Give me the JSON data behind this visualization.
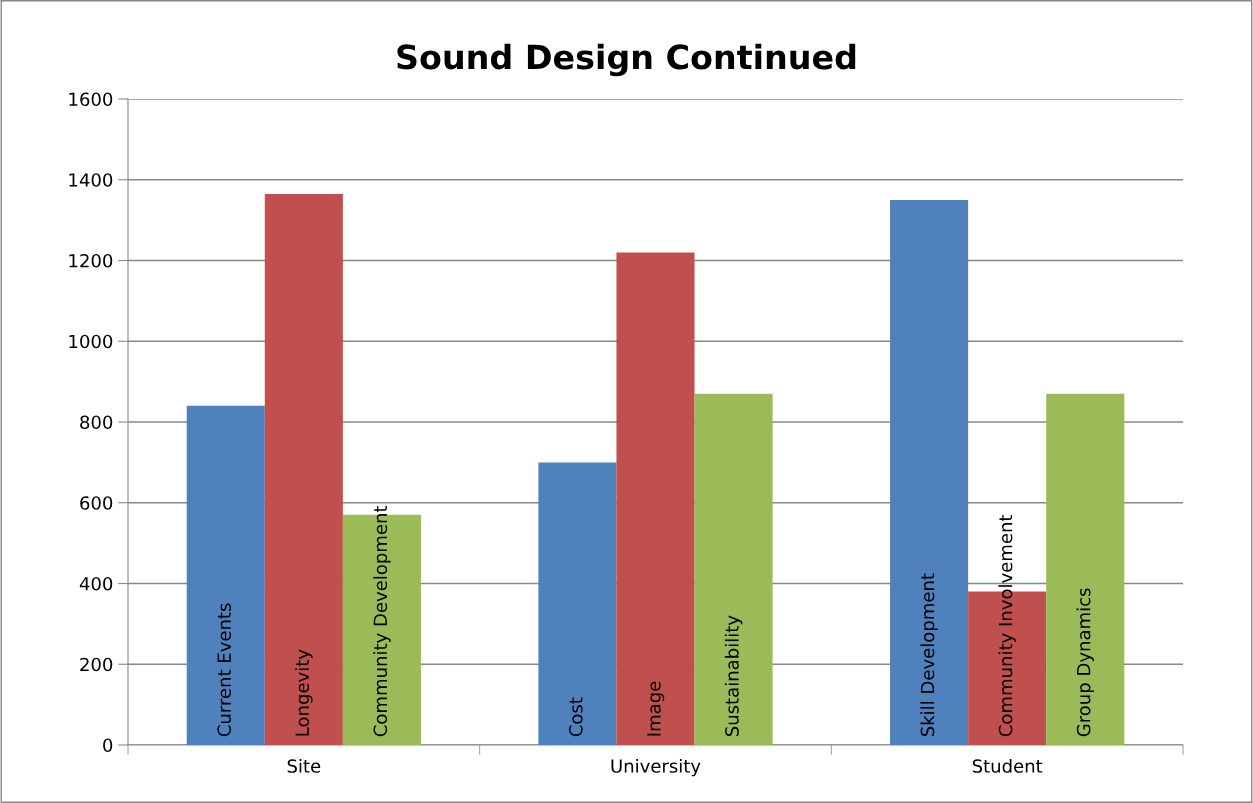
{
  "chart_data": {
    "type": "bar",
    "title": "Sound Design Continued",
    "categories": [
      "Site",
      "University",
      "Student"
    ],
    "series": [
      {
        "color": "#4f81bd",
        "values": [
          840,
          700,
          1350
        ],
        "value_labels": [
          "Current Events",
          "Cost",
          "Skill Development"
        ]
      },
      {
        "color": "#c0504d",
        "values": [
          1365,
          1220,
          380
        ],
        "value_labels": [
          "Longevity",
          "Image",
          "Community Involvement"
        ]
      },
      {
        "color": "#9bbb59",
        "values": [
          570,
          870,
          870
        ],
        "value_labels": [
          "Community Development",
          "Sustainability",
          "Group Dynamics"
        ]
      }
    ],
    "ylim": [
      0,
      1600
    ],
    "yticks": [
      0,
      200,
      400,
      600,
      800,
      1000,
      1200,
      1400,
      1600
    ],
    "grid": "y"
  }
}
